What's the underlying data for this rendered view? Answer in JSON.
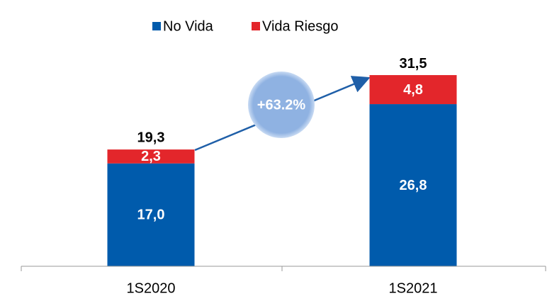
{
  "chart_data": {
    "type": "stacked_bar",
    "categories": [
      "1S2020",
      "1S2021"
    ],
    "series": [
      {
        "name": "No Vida",
        "color": "#005bac",
        "values": [
          17.0,
          26.8
        ],
        "value_labels": [
          "17,0",
          "26,8"
        ]
      },
      {
        "name": "Vida Riesgo",
        "color": "#e3262b",
        "values": [
          2.3,
          4.8
        ],
        "value_labels": [
          "2,3",
          "4,8"
        ]
      }
    ],
    "totals": [
      19.3,
      31.5
    ],
    "total_labels": [
      "19,3",
      "31,5"
    ],
    "annotation": "+63.2%",
    "ylim": [
      0,
      35
    ],
    "legend": "top"
  }
}
